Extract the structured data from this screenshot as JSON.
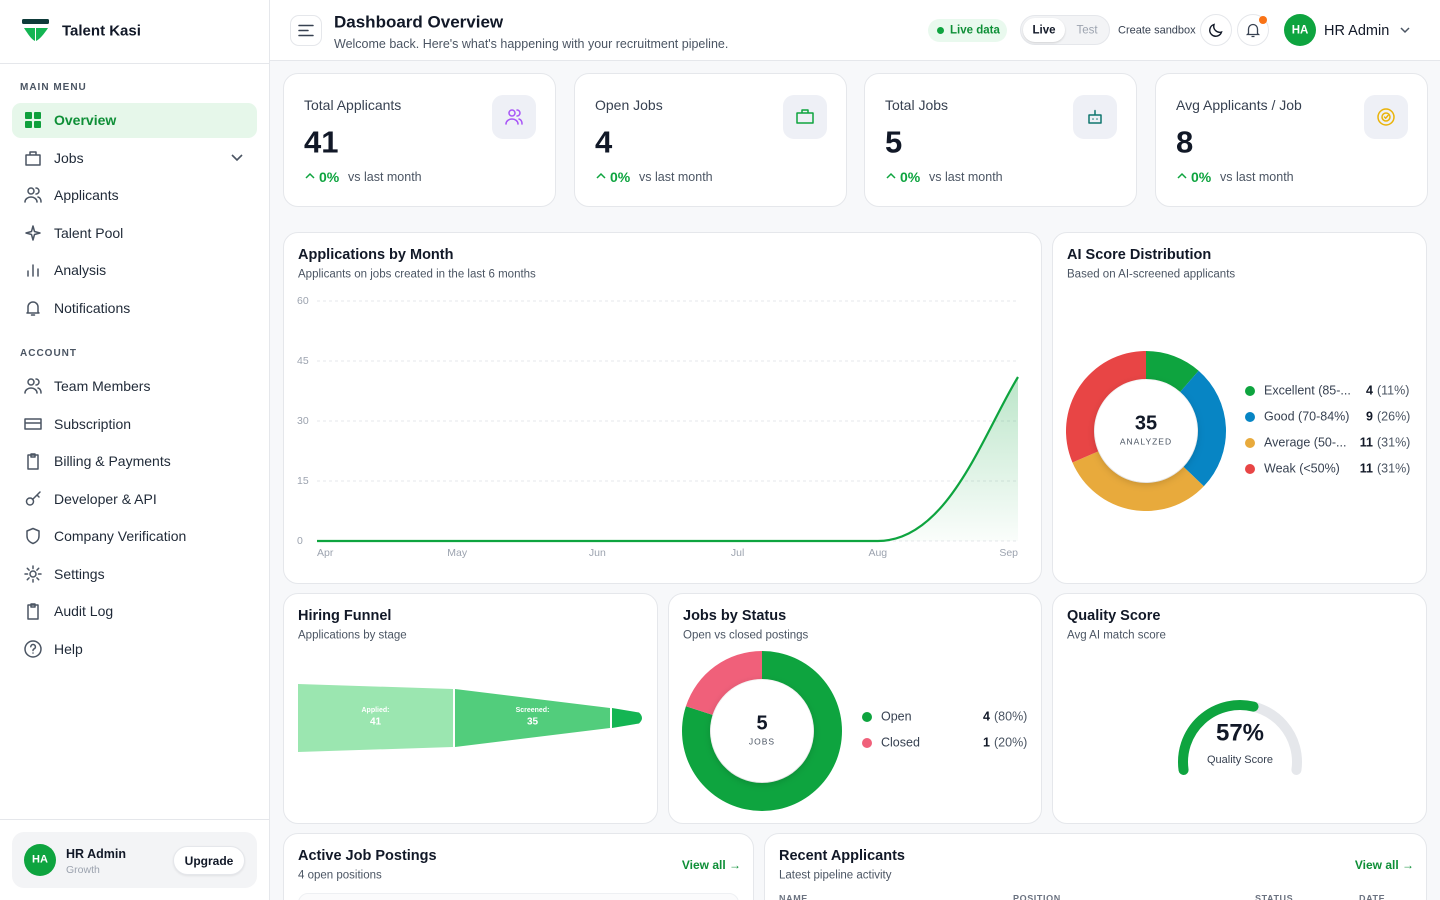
{
  "sidebar": {
    "brand": "Talent Kasi",
    "main_menu_label": "MAIN MENU",
    "main_menu": [
      "Overview",
      "Jobs",
      "Applicants",
      "Talent Pool",
      "Analysis",
      "Notifications"
    ],
    "account_label": "ACCOUNT",
    "account_menu": [
      "Team Members",
      "Subscription",
      "Billing & Payments",
      "Developer & API",
      "Company Verification",
      "Settings",
      "Audit Log",
      "Help"
    ],
    "user": {
      "initials": "HA",
      "name": "HR Admin",
      "plan": "Growth",
      "button": "Upgrade"
    }
  },
  "header": {
    "title": "Dashboard Overview",
    "subtitle": "Welcome back. Here's what's happening with your recruitment pipeline.",
    "live_badge": "Live data",
    "mode_toggle": [
      "Live",
      "Test"
    ],
    "sandbox": "Create sandbox",
    "user_initials": "HA",
    "user_name": "HR Admin"
  },
  "stats": [
    {
      "label": "Total Applicants",
      "value": 41,
      "change": "0%",
      "note": "vs last month"
    },
    {
      "label": "Open Jobs",
      "value": 4,
      "change": "0%",
      "note": "vs last month"
    },
    {
      "label": "Total Jobs",
      "value": 5,
      "change": "0%",
      "note": "vs last month"
    },
    {
      "label": "Avg Applicants / Job",
      "value": 8,
      "change": "0%",
      "note": "vs last month"
    }
  ],
  "chart_data": [
    {
      "type": "line",
      "title": "Applications by Month",
      "subtitle": "Applicants on jobs created in the last 6 months",
      "categories": [
        "Apr",
        "May",
        "Jun",
        "Jul",
        "Aug",
        "Sep"
      ],
      "values": [
        0,
        0,
        0,
        0,
        0,
        41
      ],
      "color": "#0ea43f",
      "ylim": [
        0,
        60
      ],
      "yticks": [
        0,
        15,
        30,
        45,
        60
      ],
      "grid": true
    },
    {
      "type": "donut",
      "title": "AI Score Distribution",
      "subtitle": "Based on AI-screened applicants",
      "center_value": 35,
      "center_label": "ANALYZED",
      "categories": [
        "Excellent (85-...",
        "Good (70-84%)",
        "Average (50-...",
        "Weak (<50%)"
      ],
      "values": [
        4,
        9,
        11,
        11
      ],
      "percent_labels": [
        "(11%)",
        "(26%)",
        "(31%)",
        "(31%)"
      ],
      "colors": [
        "#0ea43f",
        "#0785c4",
        "#e8aa3c",
        "#e84545"
      ]
    },
    {
      "type": "funnel",
      "title": "Hiring Funnel",
      "subtitle": "Applications by stage",
      "categories": [
        "Applied:",
        "Screened:",
        null
      ],
      "values": [
        41,
        35,
        12
      ],
      "colors": [
        "#9be6b0",
        "#52cd7c",
        "#14b553"
      ]
    },
    {
      "type": "donut",
      "title": "Jobs by Status",
      "subtitle": "Open vs closed postings",
      "center_value": 5,
      "center_label": "JOBS",
      "categories": [
        "Open",
        "Closed"
      ],
      "values": [
        4,
        1
      ],
      "percent_labels": [
        "(80%)",
        "(20%)"
      ],
      "colors": [
        "#0ea43f",
        "#f0607a"
      ]
    },
    {
      "type": "gauge",
      "title": "Quality Score",
      "subtitle": "Avg AI match score",
      "values": [
        57
      ],
      "value_labels": [
        "57%"
      ],
      "label": "Quality Score",
      "ylim": [
        0,
        100
      ],
      "color": "#0ea43f",
      "track_color": "#e5e7eb"
    }
  ],
  "job_postings": {
    "title": "Active Job Postings",
    "subtitle": "4 open positions",
    "link": "View all →"
  },
  "recent_applicants": {
    "title": "Recent Applicants",
    "subtitle": "Latest pipeline activity",
    "link": "View all →",
    "columns": [
      "NAME",
      "POSITION",
      "STATUS",
      "DATE"
    ]
  }
}
